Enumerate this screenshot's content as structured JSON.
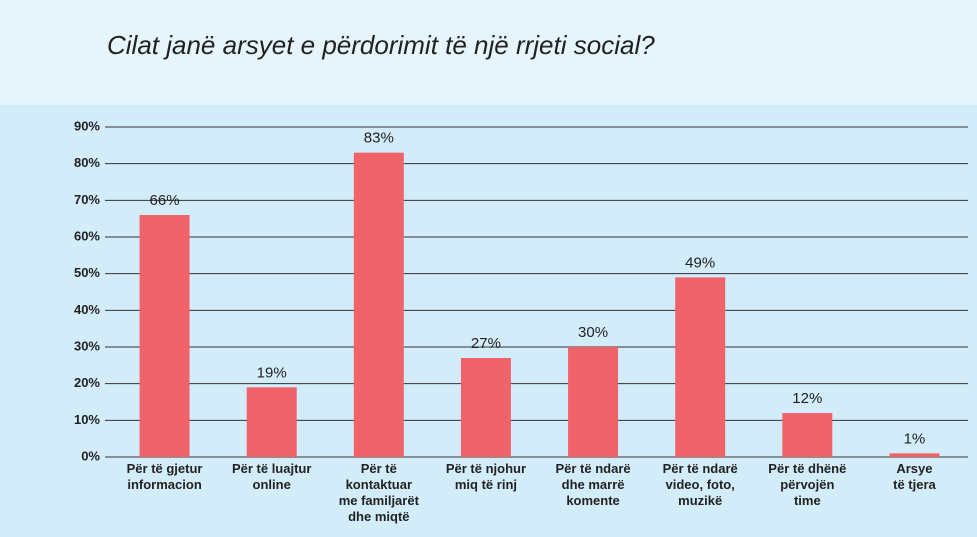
{
  "chart_data": {
    "type": "bar",
    "title": "Cilat janë arsyet e përdorimit të një rrjeti social?",
    "categories": [
      "Për të gjetur\ninformacion",
      "Për të luajtur\nonline",
      "Për të\nkontaktuar\nme familjarët\ndhe miqtë",
      "Për të njohur\nmiq të rinj",
      "Për të ndarë\ndhe marrë\nkomente",
      "Për të ndarë\nvideo, foto,\nmuzikë",
      "Për të dhënë\npërvojën\ntime",
      "Arsye\ntë tjera"
    ],
    "values": [
      66,
      19,
      83,
      27,
      30,
      49,
      12,
      1
    ],
    "value_labels": [
      "66%",
      "19%",
      "83%",
      "27%",
      "30%",
      "49%",
      "12%",
      "1%"
    ],
    "color": "#f0636b",
    "ylim": [
      0,
      90
    ],
    "yticks": [
      {
        "value": 0,
        "label": "0%"
      },
      {
        "value": 10,
        "label": "10%"
      },
      {
        "value": 20,
        "label": "20%"
      },
      {
        "value": 30,
        "label": "30%"
      },
      {
        "value": 40,
        "label": "40%"
      },
      {
        "value": 50,
        "label": "50%"
      },
      {
        "value": 60,
        "label": "60%"
      },
      {
        "value": 70,
        "label": "70%"
      },
      {
        "value": 80,
        "label": "80%"
      },
      {
        "value": 90,
        "label": "90%"
      }
    ],
    "grid": true
  }
}
